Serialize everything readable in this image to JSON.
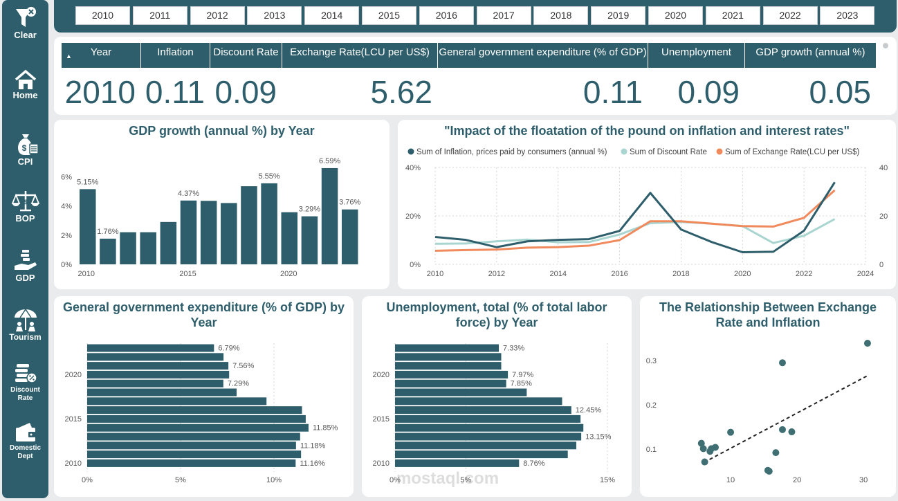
{
  "sidebar": {
    "items": [
      {
        "label": "Clear",
        "icon": "filter-clear-icon"
      },
      {
        "label": "Home",
        "icon": "home-icon"
      },
      {
        "label": "CPI",
        "icon": "money-bag-icon"
      },
      {
        "label": "BOP",
        "icon": "scales-icon"
      },
      {
        "label": "GDP",
        "icon": "hand-coins-icon"
      },
      {
        "label": "Tourism",
        "icon": "tourism-icon"
      },
      {
        "label": "Discount Rate",
        "icon": "coin-stack-icon"
      },
      {
        "label": "Domestic Dept",
        "icon": "wallet-icon"
      }
    ]
  },
  "years": [
    "2010",
    "2011",
    "2012",
    "2013",
    "2014",
    "2015",
    "2016",
    "2017",
    "2018",
    "2019",
    "2020",
    "2021",
    "2022",
    "2023"
  ],
  "kpi": {
    "headers": [
      "Year",
      "Inflation",
      "Discount Rate",
      "Exchange Rate(LCU per US$)",
      "General government expenditure (% of GDP)",
      "Unemployment",
      "GDP growth (annual %)"
    ],
    "values": [
      "2010",
      "0.11",
      "0.09",
      "5.62",
      "0.11",
      "0.09",
      "0.05"
    ]
  },
  "colors": {
    "primary": "#2e5e6b",
    "light": "#a9d5d0",
    "orange": "#f08a5d"
  },
  "chart_data": [
    {
      "type": "bar",
      "title": "GDP growth (annual %) by Year",
      "categories": [
        2010,
        2011,
        2012,
        2013,
        2014,
        2015,
        2016,
        2017,
        2018,
        2019,
        2020,
        2021,
        2022,
        2023
      ],
      "values": [
        5.15,
        1.76,
        2.2,
        2.2,
        2.9,
        4.37,
        4.35,
        4.2,
        5.35,
        5.55,
        3.57,
        3.29,
        6.59,
        3.76
      ],
      "data_labels": {
        "2010": "5.15%",
        "2011": "1.76%",
        "2015": "4.37%",
        "2019": "5.55%",
        "2021": "3.29%",
        "2022": "6.59%",
        "2023": "3.76%"
      },
      "yticks": [
        "0%",
        "2%",
        "4%",
        "6%"
      ],
      "xticks": [
        "2010",
        "2015",
        "2020"
      ],
      "ylim": [
        0,
        7
      ]
    },
    {
      "type": "line",
      "title": "\"Impact of the floatation of the pound on inflation and interest rates\"",
      "x": [
        2010,
        2011,
        2012,
        2013,
        2014,
        2015,
        2016,
        2017,
        2018,
        2019,
        2020,
        2021,
        2022,
        2023
      ],
      "series": [
        {
          "name": "Sum of Inflation, prices paid by consumers (annual %)",
          "axis": "left",
          "color": "#2e5e6b",
          "values": [
            11.3,
            10.1,
            7.1,
            9.5,
            10.1,
            10.4,
            13.8,
            29.5,
            14.4,
            9.2,
            5.0,
            5.2,
            13.9,
            33.9
          ]
        },
        {
          "name": "Sum of Discount Rate",
          "axis": "left",
          "color": "#a9d5d0",
          "values": [
            8.5,
            8.6,
            9.5,
            10.2,
            9.1,
            9.2,
            12.3,
            17.0,
            17.5,
            16.8,
            15.8,
            8.8,
            11.8,
            18.7
          ]
        },
        {
          "name": "Sum of Exchange Rate(LCU per US$)",
          "axis": "right",
          "color": "#f08a5d",
          "values": [
            5.6,
            5.9,
            6.1,
            6.9,
            7.1,
            7.7,
            10.0,
            17.8,
            17.8,
            16.8,
            15.8,
            15.6,
            19.2,
            30.6
          ]
        }
      ],
      "left_ticks": [
        "0%",
        "20%",
        "40%"
      ],
      "right_ticks": [
        "0",
        "20",
        "40"
      ],
      "xticks": [
        "2010",
        "2012",
        "2014",
        "2016",
        "2018",
        "2020",
        "2022",
        "2024"
      ],
      "left_range": [
        0,
        40
      ],
      "right_range": [
        0,
        40
      ],
      "x_range": [
        2010,
        2024
      ]
    },
    {
      "type": "bar",
      "orientation": "horizontal",
      "title": "General government expenditure (% of GDP) by Year",
      "categories": [
        2023,
        2022,
        2021,
        2020,
        2019,
        2018,
        2017,
        2016,
        2015,
        2014,
        2013,
        2012,
        2011,
        2010
      ],
      "values": [
        6.79,
        7.3,
        7.56,
        7.6,
        7.29,
        8.0,
        9.6,
        11.5,
        11.7,
        11.85,
        11.4,
        11.18,
        11.45,
        11.16
      ],
      "data_labels": {
        "2023": "6.79%",
        "2021": "7.56%",
        "2019": "7.29%",
        "2014": "11.85%",
        "2012": "11.18%",
        "2010": "11.16%"
      },
      "xticks": [
        "0%",
        "5%",
        "10%"
      ],
      "yticks": [
        "2020",
        "2015",
        "2010"
      ],
      "xlim": [
        0,
        14
      ]
    },
    {
      "type": "bar",
      "orientation": "horizontal",
      "title": "Unemployment, total (% of total labor force) by Year",
      "categories": [
        2023,
        2022,
        2021,
        2020,
        2019,
        2018,
        2017,
        2016,
        2015,
        2014,
        2013,
        2012,
        2011,
        2010
      ],
      "values": [
        7.33,
        7.5,
        7.5,
        7.97,
        7.85,
        9.3,
        11.8,
        12.45,
        13.1,
        13.3,
        13.15,
        12.8,
        12.2,
        8.76
      ],
      "data_labels": {
        "2023": "7.33%",
        "2020": "7.97%",
        "2019": "7.85%",
        "2016": "12.45%",
        "2013": "13.15%",
        "2010": "8.76%"
      },
      "xticks": [
        "0%",
        "5%",
        "15%"
      ],
      "yticks": [
        "2020",
        "2015",
        "2010"
      ],
      "xlim": [
        0,
        15
      ]
    },
    {
      "type": "scatter",
      "title": "The Relationship Between Exchange Rate and Inflation",
      "points": [
        [
          5.6,
          0.113
        ],
        [
          5.9,
          0.101
        ],
        [
          6.1,
          0.071
        ],
        [
          6.9,
          0.095
        ],
        [
          7.1,
          0.101
        ],
        [
          7.7,
          0.104
        ],
        [
          10.0,
          0.138
        ],
        [
          17.8,
          0.295
        ],
        [
          17.8,
          0.144
        ],
        [
          16.8,
          0.092
        ],
        [
          15.8,
          0.05
        ],
        [
          15.6,
          0.052
        ],
        [
          19.2,
          0.139
        ],
        [
          30.6,
          0.339
        ]
      ],
      "trendline": [
        [
          6.0,
          0.07
        ],
        [
          30.5,
          0.265
        ]
      ],
      "xticks": [
        "10",
        "20",
        "30"
      ],
      "yticks": [
        "0.1",
        "0.2",
        "0.3"
      ],
      "x_range": [
        0,
        33
      ],
      "y_range": [
        0.05,
        0.35
      ]
    }
  ],
  "watermark": "mostaql.com"
}
